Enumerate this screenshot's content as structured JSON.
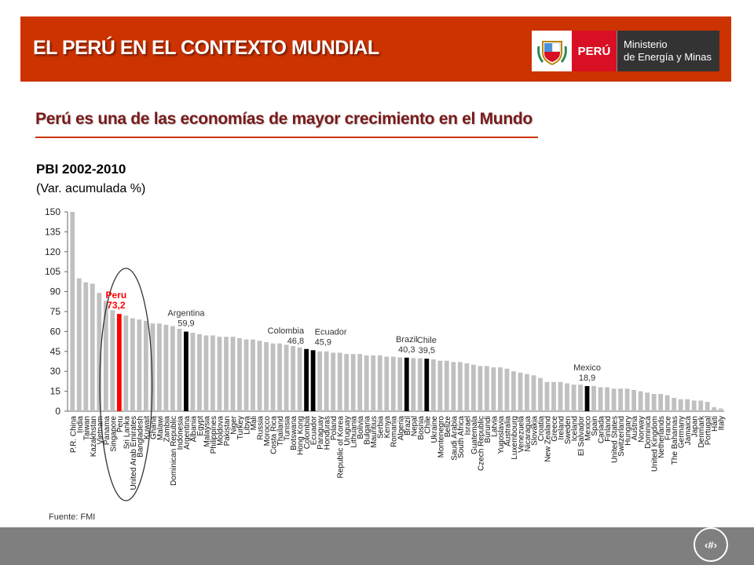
{
  "header": {
    "title": "EL PERÚ EN EL CONTEXTO MUNDIAL",
    "logo": {
      "country": "PERÚ",
      "ministry_line1": "Ministerio",
      "ministry_line2": "de Energía y Minas"
    }
  },
  "subtitle": "Perú es una de las economías de mayor crecimiento en el Mundo",
  "colors": {
    "header_band": "#cc3300",
    "bar_default": "#c0c0c0",
    "bar_peru": "#ff0000",
    "bar_highlight": "#000000",
    "footer": "#7f7f7f"
  },
  "page_number": "‹#›",
  "chart_data": {
    "type": "bar",
    "title": "PBI 2002-2010",
    "subtitle": "(Var. acumulada %)",
    "source": "Fuente: FMI",
    "ylim": [
      0,
      150
    ],
    "yticks": [
      0,
      15,
      30,
      45,
      60,
      75,
      90,
      105,
      120,
      135,
      150
    ],
    "grid": false,
    "categories": [
      "P.R. China",
      "India",
      "Taiwan",
      "Kazakhstan",
      "Vietnam",
      "Panama",
      "Singapore",
      "Peru",
      "Sri Lanka",
      "United Arab Emirates",
      "Bangladesh",
      "Kuwait",
      "Ghana",
      "Malawi",
      "Zambia",
      "Dominican Republic",
      "Indonesia",
      "Argentina",
      "Albania",
      "Egypt",
      "Malaysia",
      "Philippines",
      "Moldova",
      "Pakistan",
      "Niger",
      "Turkey",
      "Libya",
      "Mali",
      "Russia",
      "Morocco",
      "Costa Rica",
      "Thailand",
      "Tunisia",
      "Botswana",
      "Hong Kong",
      "Colombia",
      "Ecuador",
      "Paraguay",
      "Honduras",
      "Poland",
      "Republic of Korea",
      "Uruguay",
      "Lithuania",
      "Bolivia",
      "Bulgaria",
      "Mauritius",
      "Serbia",
      "Kenya",
      "Romania",
      "Algeria",
      "Brazil",
      "Nepal",
      "Bosnia",
      "Chile",
      "Ukraine",
      "Montenegro",
      "Belize",
      "Saudi Arabia",
      "South Africa",
      "Israel",
      "Guatemala",
      "Czech Republic",
      "Burundi",
      "Latvia",
      "Yugoslavia",
      "Australia",
      "Luxembourg",
      "Venezuela",
      "Nicaragua",
      "Slovakia",
      "Croatia",
      "New Zealand",
      "Greece",
      "Ireland",
      "Sweden",
      "Iceland",
      "El Salvador",
      "Mexico",
      "Spain",
      "Canada",
      "Finland",
      "United States",
      "Switzerland",
      "Hungary",
      "Austria",
      "Norway",
      "Dominica",
      "United Kingdom",
      "Netherlands",
      "France",
      "The Bahamas",
      "Germany",
      "Jamaica",
      "Japan",
      "Denmark",
      "Portugal",
      "Haiti",
      "Italy"
    ],
    "values": [
      150,
      100,
      97,
      96,
      89,
      83,
      76,
      73.2,
      72,
      70,
      69,
      68,
      66,
      66,
      65,
      64,
      62,
      59.9,
      59,
      58,
      57,
      57,
      56,
      56,
      56,
      55,
      54,
      54,
      53,
      52,
      51,
      51,
      50,
      49,
      48,
      46.8,
      45.9,
      45,
      45,
      44,
      44,
      43,
      43,
      43,
      42,
      42,
      42,
      41,
      41,
      40.5,
      40.3,
      40,
      39.8,
      39.5,
      39,
      38,
      38,
      37,
      37,
      36,
      35,
      34,
      34,
      33,
      33,
      32,
      30,
      29,
      28,
      27,
      25,
      22,
      22,
      22,
      21,
      20,
      20,
      18.9,
      19,
      18,
      18,
      17,
      17,
      17,
      16,
      15,
      14,
      13,
      13,
      12,
      10,
      9,
      9,
      8,
      8,
      7,
      3,
      2
    ],
    "annotations": [
      {
        "category": "Peru",
        "label": "Peru",
        "value_label": "73,2",
        "color": "#ff0000"
      },
      {
        "category": "Argentina",
        "label": "Argentina",
        "value_label": "59,9",
        "color": "#000000"
      },
      {
        "category": "Colombia",
        "label": "Colombia",
        "value_label": "46,8",
        "color": "#000000"
      },
      {
        "category": "Ecuador",
        "label": "Ecuador",
        "value_label": "45,9",
        "color": "#000000"
      },
      {
        "category": "Brazil",
        "label": "Brazil",
        "value_label": "40,3",
        "color": "#000000"
      },
      {
        "category": "Chile",
        "label": "Chile",
        "value_label": "39,5",
        "color": "#000000"
      },
      {
        "category": "Mexico",
        "label": "Mexico",
        "value_label": "18,9",
        "color": "#000000"
      }
    ],
    "highlight_circle_around": [
      "Singapore",
      "Peru",
      "Sri Lanka",
      "United Arab Emirates",
      "Bangladesh"
    ]
  }
}
